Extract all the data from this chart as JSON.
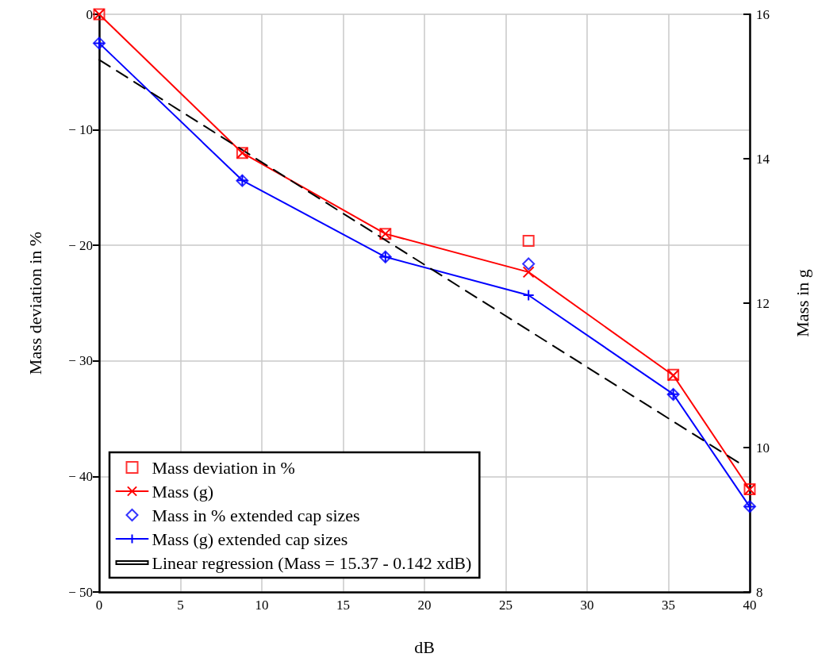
{
  "chart_data": {
    "type": "line",
    "xlabel": "dB",
    "ylabel": "Mass deviation in %",
    "y2label": "Mass in g",
    "xlim": [
      0,
      40
    ],
    "xticks": [
      0,
      5,
      10,
      15,
      20,
      25,
      30,
      35,
      40
    ],
    "ylim": [
      -50,
      0
    ],
    "yticks": [
      {
        "value": -50,
        "label": "− 50"
      },
      {
        "value": -40,
        "label": "− 40"
      },
      {
        "value": -30,
        "label": "− 30"
      },
      {
        "value": -20,
        "label": "− 20"
      },
      {
        "value": -10,
        "label": "− 10"
      },
      0
    ],
    "y2lim": [
      8,
      16
    ],
    "y2ticks": [
      8,
      10,
      12,
      14,
      16
    ],
    "grid": true,
    "legend": "bottom left",
    "series": [
      {
        "name": "Mass deviation in %",
        "type": "scatter",
        "marker": "square",
        "color": "#ff0000",
        "x": [
          0,
          8.8,
          17.6,
          26.4,
          35.3,
          40
        ],
        "values": [
          0,
          -12.0,
          -19.0,
          -19.6,
          -31.2,
          -41.1
        ]
      },
      {
        "name": "Mass (g)",
        "type": "line",
        "axis": "y2",
        "marker": "cross",
        "color": "#ff0000",
        "x": [
          0,
          8.8,
          17.6,
          26.4,
          35.3,
          40
        ],
        "values": [
          16.0,
          14.08,
          12.96,
          12.43,
          11.0,
          9.42
        ]
      },
      {
        "name": "Mass in % extended cap sizes",
        "type": "scatter",
        "marker": "diamond",
        "color": "#0000ff",
        "x": [
          0,
          8.8,
          17.6,
          26.4,
          35.3,
          40
        ],
        "values": [
          -2.5,
          -14.4,
          -21.0,
          -21.6,
          -32.9,
          -42.6
        ]
      },
      {
        "name": "Mass (g) extended cap sizes",
        "type": "line",
        "axis": "y2",
        "marker": "plus",
        "color": "#0000ff",
        "x": [
          0,
          8.8,
          17.6,
          26.4,
          35.3,
          40
        ],
        "values": [
          15.6,
          13.7,
          12.64,
          12.11,
          10.74,
          9.18
        ]
      },
      {
        "name": "Linear regression (Mass = 15.37 - 0.142 xdB)",
        "type": "line",
        "axis": "y2",
        "marker": "none",
        "line_style": "dashed",
        "color": "#000000",
        "x": [
          0,
          39.4
        ],
        "values": [
          15.37,
          9.78
        ]
      }
    ]
  }
}
